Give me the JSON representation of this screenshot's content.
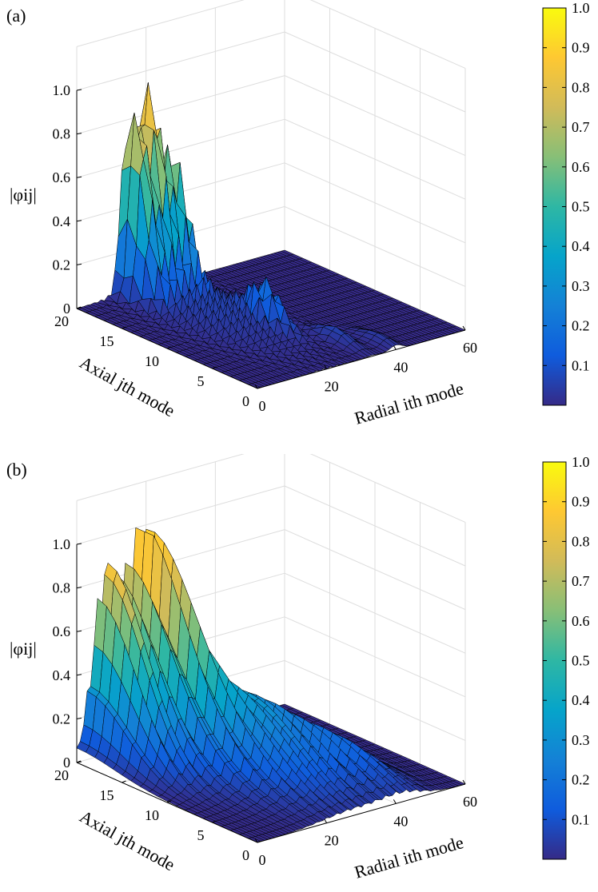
{
  "chart_data": [
    {
      "type": "surface",
      "panel_label": "(a)",
      "zlabel": "|φij|",
      "xlabel": "Radial ith mode",
      "ylabel": "Axial jth mode",
      "x_ticks": [
        "0",
        "20",
        "40",
        "60"
      ],
      "y_ticks": [
        "0",
        "5",
        "10",
        "15",
        "20"
      ],
      "z_ticks": [
        "0",
        "0.2",
        "0.4",
        "0.6",
        "0.8",
        "1.0"
      ],
      "xlim": [
        0,
        60
      ],
      "ylim": [
        0,
        20
      ],
      "zlim": [
        0,
        1.0
      ],
      "grid": true,
      "colormap": "parula",
      "colorbar_ticks": [
        "0.1",
        "0.2",
        "0.3",
        "0.4",
        "0.5",
        "0.6",
        "0.7",
        "0.8",
        "0.9",
        "1.0"
      ],
      "clim": [
        0,
        1.0
      ],
      "peaks": [
        {
          "i": 14,
          "j": 19,
          "value": 0.77
        },
        {
          "i": 18,
          "j": 19,
          "value": 0.85
        },
        {
          "i": 22,
          "j": 18,
          "value": 0.6
        },
        {
          "i": 26,
          "j": 9,
          "value": 0.18
        },
        {
          "i": 33,
          "j": 4,
          "value": 0.06
        },
        {
          "i": 40,
          "j": 2,
          "value": 0.04
        }
      ],
      "surface_description_values": "sparse: near zero except a few spikes at small axial j and i between 12 and 28"
    },
    {
      "type": "surface",
      "panel_label": "(b)",
      "zlabel": "|φij|",
      "xlabel": "Radial ith mode",
      "ylabel": "Axial jth mode",
      "x_ticks": [
        "0",
        "20",
        "40",
        "60"
      ],
      "y_ticks": [
        "0",
        "5",
        "10",
        "15",
        "20"
      ],
      "z_ticks": [
        "0",
        "0.2",
        "0.4",
        "0.6",
        "0.8",
        "1.0"
      ],
      "xlim": [
        0,
        60
      ],
      "ylim": [
        0,
        20
      ],
      "zlim": [
        0,
        1.0
      ],
      "grid": true,
      "colormap": "parula",
      "colorbar_ticks": [
        "0.1",
        "0.2",
        "0.3",
        "0.4",
        "0.5",
        "0.6",
        "0.7",
        "0.8",
        "0.9",
        "1.0"
      ],
      "clim": [
        0,
        1.0
      ],
      "peaks": [
        {
          "i": 8,
          "j": 20,
          "value": 0.85
        },
        {
          "i": 18,
          "j": 20,
          "value": 1.0
        },
        {
          "i": 30,
          "j": 12,
          "value": 0.35
        },
        {
          "i": 45,
          "j": 5,
          "value": 0.1
        }
      ],
      "surface_description_values": "broad distribution over many modes with two main ridges"
    }
  ],
  "colors": {
    "parula": [
      "#352a87",
      "#0f5cdd",
      "#1481d6",
      "#06a4ca",
      "#2eb7a4",
      "#87bf77",
      "#d1bb59",
      "#fec832",
      "#f9fb0e"
    ],
    "grid": "#dddddd",
    "axis": "#000000",
    "surface_edge": "#000000"
  }
}
